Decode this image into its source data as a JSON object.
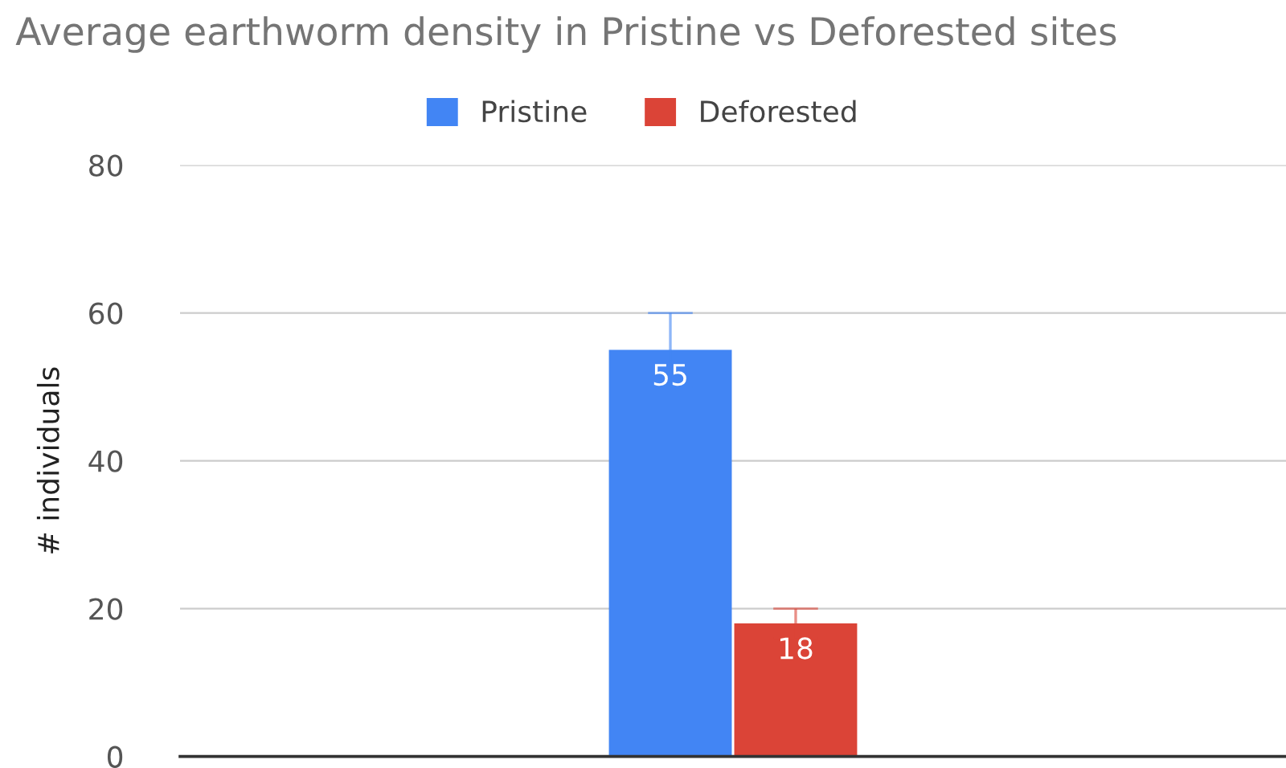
{
  "chart_data": {
    "type": "bar",
    "title": "Average earthworm density in Pristine vs Deforested sites",
    "ylabel": "# individuals",
    "categories": [
      null
    ],
    "series": [
      {
        "name": "Pristine",
        "color": "#4285f4",
        "values": [
          55
        ],
        "errors": [
          5
        ]
      },
      {
        "name": "Deforested",
        "color": "#db4437",
        "values": [
          18
        ],
        "errors": [
          2
        ]
      }
    ],
    "ylim": [
      0,
      80
    ],
    "yticks": [
      0,
      20,
      40,
      60,
      80
    ],
    "grid": "y",
    "legend": "top",
    "data_labels": true
  }
}
